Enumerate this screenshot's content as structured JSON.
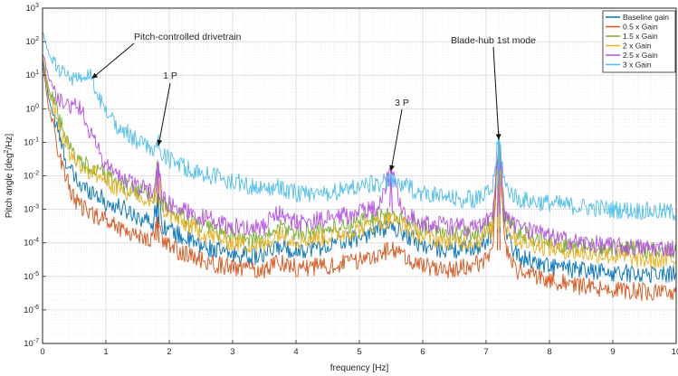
{
  "chart_data": {
    "type": "line",
    "xlabel": "frequency [Hz]",
    "ylabel_parts": [
      "Pitch angle [deg",
      "2",
      "/Hz]"
    ],
    "xlim": [
      0,
      10
    ],
    "ylim": [
      1e-07,
      1000
    ],
    "yscale": "log",
    "grid": true,
    "minor_grid": true,
    "legend_placement": "top-right",
    "x_ticks": [
      "0",
      "1",
      "2",
      "3",
      "4",
      "5",
      "6",
      "7",
      "8",
      "9",
      "10"
    ],
    "y_ticks": [
      {
        "base": "10",
        "exp": "3"
      },
      {
        "base": "10",
        "exp": "2"
      },
      {
        "base": "10",
        "exp": "1"
      },
      {
        "base": "10",
        "exp": "0"
      },
      {
        "base": "10",
        "exp": "-1"
      },
      {
        "base": "10",
        "exp": "-2"
      },
      {
        "base": "10",
        "exp": "-3"
      },
      {
        "base": "10",
        "exp": "-4"
      },
      {
        "base": "10",
        "exp": "-5"
      },
      {
        "base": "10",
        "exp": "-6"
      },
      {
        "base": "10",
        "exp": "-7"
      }
    ],
    "series": [
      {
        "name": "Baseline gain",
        "color": "#0072BD",
        "x": [
          0,
          0.05,
          0.1,
          0.2,
          0.3,
          0.4,
          0.5,
          0.6,
          0.7,
          0.8,
          0.9,
          1.0,
          1.2,
          1.4,
          1.6,
          1.75,
          1.82,
          1.9,
          2.0,
          2.2,
          2.5,
          3.0,
          3.5,
          3.7,
          4.0,
          4.5,
          5.0,
          5.3,
          5.5,
          5.7,
          6.0,
          6.5,
          6.9,
          7.1,
          7.2,
          7.3,
          7.5,
          8.0,
          8.5,
          9.0,
          9.5,
          10.0
        ],
        "y": [
          30,
          8,
          2,
          0.4,
          0.08,
          0.02,
          0.009,
          0.005,
          0.004,
          0.0035,
          0.0025,
          0.0015,
          0.0012,
          0.0008,
          0.0005,
          0.0004,
          0.003,
          0.00035,
          0.00025,
          0.00015,
          8e-05,
          4.5e-05,
          4e-05,
          8e-05,
          6e-05,
          8e-05,
          0.00015,
          0.00025,
          0.0003,
          0.0002,
          8e-05,
          6e-05,
          8e-05,
          0.0002,
          0.1,
          0.0002,
          4e-05,
          2e-05,
          1.5e-05,
          1.3e-05,
          1.2e-05,
          1.2e-05
        ]
      },
      {
        "name": "0.5 x Gain",
        "color": "#D95319",
        "x": [
          0,
          0.05,
          0.1,
          0.2,
          0.3,
          0.4,
          0.5,
          0.6,
          0.7,
          0.8,
          0.9,
          1.0,
          1.2,
          1.4,
          1.6,
          1.75,
          1.82,
          1.9,
          2.0,
          2.2,
          2.5,
          3.0,
          3.5,
          3.7,
          4.0,
          4.5,
          5.0,
          5.3,
          5.5,
          5.7,
          6.0,
          6.5,
          6.9,
          7.1,
          7.2,
          7.3,
          7.5,
          8.0,
          8.5,
          9.0,
          9.5,
          10.0
        ],
        "y": [
          20,
          5,
          1,
          0.15,
          0.025,
          0.006,
          0.002,
          0.0012,
          0.0009,
          0.0007,
          0.0006,
          0.0005,
          0.0003,
          0.0002,
          0.00015,
          0.00012,
          0.0006,
          0.0001,
          8e-05,
          5e-05,
          3e-05,
          1.8e-05,
          1.5e-05,
          3e-05,
          1.8e-05,
          2e-05,
          3e-05,
          5e-05,
          6e-05,
          4e-05,
          2e-05,
          1.5e-05,
          2.5e-05,
          6e-05,
          0.1,
          6e-05,
          1.5e-05,
          8e-06,
          5e-06,
          4e-06,
          3.5e-06,
          3e-06
        ]
      },
      {
        "name": "1.5 x Gain",
        "color": "#77AC30",
        "x": [
          0,
          0.05,
          0.1,
          0.2,
          0.3,
          0.4,
          0.5,
          0.6,
          0.7,
          0.8,
          0.9,
          1.0,
          1.2,
          1.4,
          1.6,
          1.75,
          1.82,
          1.9,
          2.0,
          2.2,
          2.5,
          3.0,
          3.5,
          3.7,
          4.0,
          4.5,
          5.0,
          5.3,
          5.5,
          5.7,
          6.0,
          6.5,
          6.9,
          7.1,
          7.2,
          7.3,
          7.5,
          8.0,
          8.5,
          9.0,
          9.5,
          10.0
        ],
        "y": [
          40,
          12,
          4,
          1,
          0.3,
          0.08,
          0.04,
          0.025,
          0.02,
          0.018,
          0.015,
          0.01,
          0.006,
          0.004,
          0.003,
          0.002,
          0.02,
          0.0015,
          0.001,
          0.0006,
          0.0003,
          0.00015,
          0.00012,
          0.0003,
          0.0002,
          0.00025,
          0.0004,
          0.0006,
          0.0007,
          0.0005,
          0.00025,
          0.00018,
          0.0002,
          0.0004,
          0.11,
          0.0005,
          0.0002,
          0.0001,
          8e-05,
          7e-05,
          6e-05,
          6e-05
        ]
      },
      {
        "name": "2 x Gain",
        "color": "#EDB120",
        "x": [
          0,
          0.05,
          0.1,
          0.2,
          0.3,
          0.4,
          0.5,
          0.6,
          0.7,
          0.8,
          0.9,
          1.0,
          1.2,
          1.4,
          1.6,
          1.75,
          1.82,
          1.9,
          2.0,
          2.2,
          2.5,
          3.0,
          3.5,
          3.7,
          4.0,
          4.5,
          5.0,
          5.3,
          5.5,
          5.7,
          6.0,
          6.5,
          6.9,
          7.1,
          7.2,
          7.3,
          7.5,
          8.0,
          8.5,
          9.0,
          9.5,
          10.0
        ],
        "y": [
          40,
          10,
          3,
          0.8,
          0.2,
          0.06,
          0.03,
          0.02,
          0.015,
          0.012,
          0.01,
          0.007,
          0.004,
          0.0025,
          0.0018,
          0.0014,
          0.012,
          0.001,
          0.0007,
          0.0004,
          0.0002,
          0.0001,
          8e-05,
          0.0002,
          0.00012,
          0.00015,
          0.00025,
          0.0004,
          0.0005,
          0.00035,
          0.00015,
          0.0001,
          0.00012,
          0.00025,
          0.1,
          0.0003,
          0.00012,
          7e-05,
          5e-05,
          4e-05,
          3e-05,
          3e-05
        ]
      },
      {
        "name": "2.5 x Gain",
        "color": "#B550E6",
        "x": [
          0,
          0.05,
          0.1,
          0.2,
          0.3,
          0.4,
          0.5,
          0.6,
          0.7,
          0.8,
          0.9,
          1.0,
          1.2,
          1.4,
          1.6,
          1.75,
          1.82,
          1.9,
          2.0,
          2.2,
          2.5,
          3.0,
          3.5,
          3.7,
          4.0,
          4.5,
          5.0,
          5.3,
          5.5,
          5.7,
          6.0,
          6.5,
          6.9,
          7.1,
          7.2,
          7.3,
          7.5,
          8.0,
          8.5,
          9.0,
          9.5,
          10.0
        ],
        "y": [
          50,
          20,
          8,
          3,
          1.5,
          1.2,
          1.5,
          1,
          0.4,
          0.12,
          0.05,
          0.02,
          0.01,
          0.006,
          0.004,
          0.003,
          0.025,
          0.002,
          0.0015,
          0.001,
          0.0006,
          0.0003,
          0.0003,
          0.0008,
          0.0004,
          0.0005,
          0.0008,
          0.0012,
          0.015,
          0.0008,
          0.0004,
          0.0003,
          0.0003,
          0.0006,
          0.12,
          0.0007,
          0.0003,
          0.00015,
          0.0001,
          8e-05,
          7e-05,
          7e-05
        ]
      },
      {
        "name": "3 x Gain",
        "color": "#4DBEEE",
        "x": [
          0,
          0.05,
          0.1,
          0.2,
          0.3,
          0.4,
          0.5,
          0.6,
          0.7,
          0.75,
          0.8,
          0.9,
          1.0,
          1.2,
          1.4,
          1.6,
          1.75,
          1.82,
          1.9,
          2.0,
          2.2,
          2.5,
          3.0,
          3.5,
          3.7,
          4.0,
          4.5,
          5.0,
          5.3,
          5.5,
          5.7,
          6.0,
          6.5,
          6.9,
          7.1,
          7.2,
          7.3,
          7.5,
          8.0,
          8.5,
          9.0,
          9.5,
          10.0
        ],
        "y": [
          200,
          80,
          40,
          20,
          15,
          10,
          8,
          6,
          7,
          12,
          5,
          2,
          0.8,
          0.3,
          0.15,
          0.08,
          0.05,
          0.12,
          0.04,
          0.03,
          0.02,
          0.012,
          0.007,
          0.004,
          0.005,
          0.003,
          0.003,
          0.005,
          0.006,
          0.007,
          0.005,
          0.003,
          0.002,
          0.002,
          0.004,
          0.15,
          0.005,
          0.002,
          0.0015,
          0.0012,
          0.001,
          0.0009,
          0.0008
        ]
      }
    ],
    "annotations": [
      {
        "text": "Pitch-controlled drivetrain",
        "target_x": 0.78,
        "target_y": 8
      },
      {
        "text": "1 P",
        "target_x": 1.83,
        "target_y": 0.08
      },
      {
        "text": "3 P",
        "target_x": 5.5,
        "target_y": 0.014
      },
      {
        "text": "Blade-hub 1st mode",
        "target_x": 7.2,
        "target_y": 0.12
      }
    ]
  }
}
